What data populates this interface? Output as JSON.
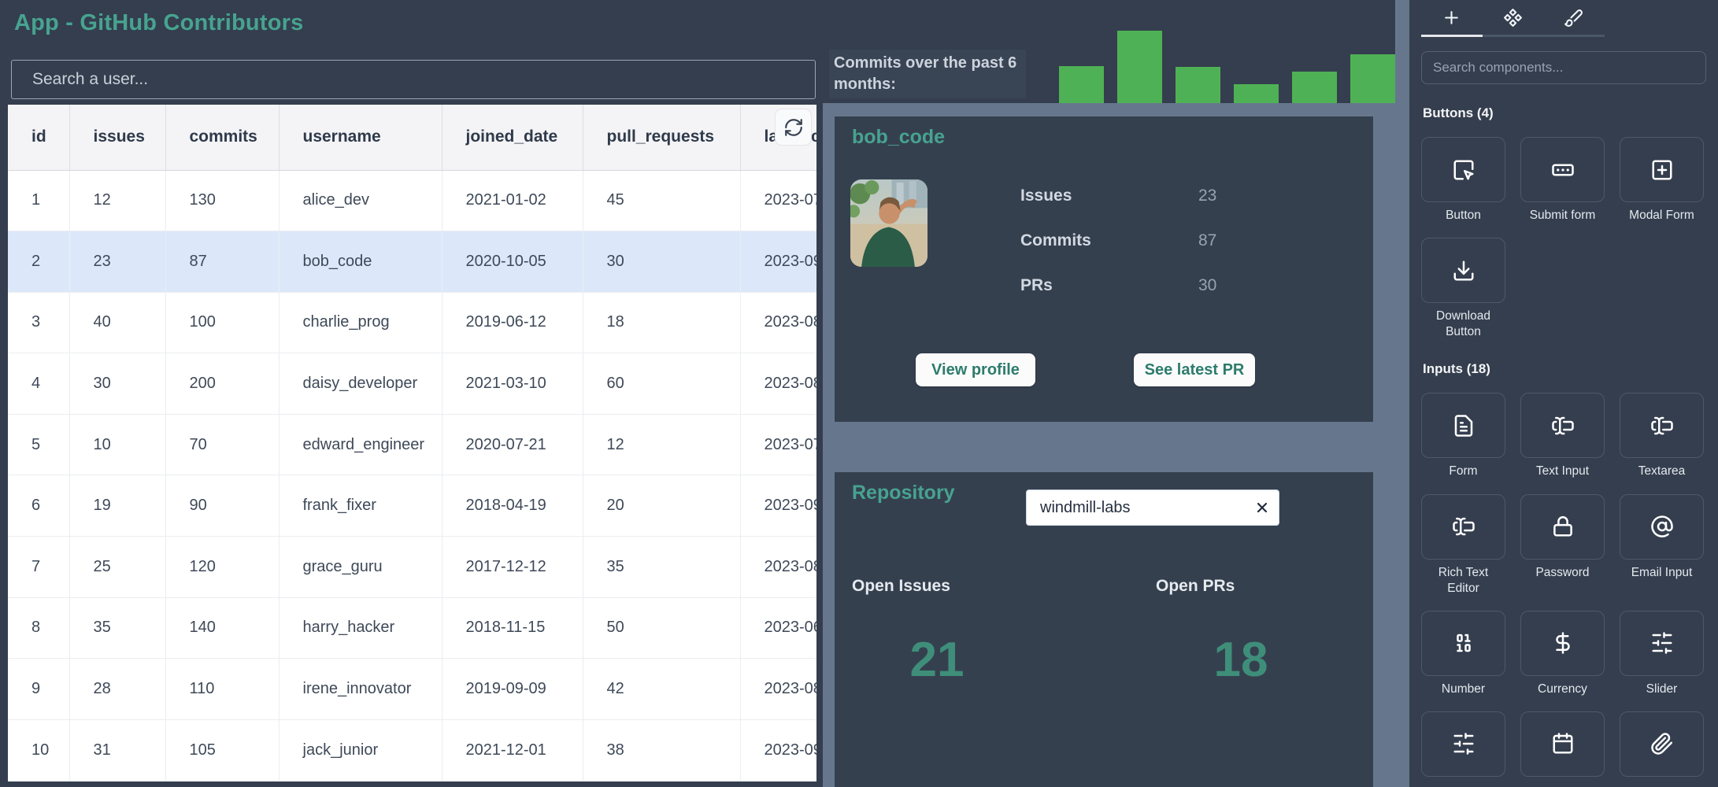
{
  "app": {
    "title": "App - GitHub Contributors"
  },
  "user_search": {
    "placeholder": "Search a user..."
  },
  "contributors_table": {
    "refresh_icon": "refresh",
    "columns": [
      "id",
      "issues",
      "commits",
      "username",
      "joined_date",
      "pull_requests",
      "last_ac"
    ],
    "selected_row": 2,
    "rows": [
      [
        "1",
        "12",
        "130",
        "alice_dev",
        "2021-01-02",
        "45",
        "2023-07"
      ],
      [
        "2",
        "23",
        "87",
        "bob_code",
        "2020-10-05",
        "30",
        "2023-09"
      ],
      [
        "3",
        "40",
        "100",
        "charlie_prog",
        "2019-06-12",
        "18",
        "2023-08"
      ],
      [
        "4",
        "30",
        "200",
        "daisy_developer",
        "2021-03-10",
        "60",
        "2023-08"
      ],
      [
        "5",
        "10",
        "70",
        "edward_engineer",
        "2020-07-21",
        "12",
        "2023-07"
      ],
      [
        "6",
        "19",
        "90",
        "frank_fixer",
        "2018-04-19",
        "20",
        "2023-09"
      ],
      [
        "7",
        "25",
        "120",
        "grace_guru",
        "2017-12-12",
        "35",
        "2023-08"
      ],
      [
        "8",
        "35",
        "140",
        "harry_hacker",
        "2018-11-15",
        "50",
        "2023-06"
      ],
      [
        "9",
        "28",
        "110",
        "irene_innovator",
        "2019-09-09",
        "42",
        "2023-08"
      ],
      [
        "10",
        "31",
        "105",
        "jack_junior",
        "2021-12-01",
        "38",
        "2023-09"
      ]
    ]
  },
  "chart_data": {
    "type": "bar",
    "title": "Commits over the past 6 months:",
    "categories": [
      "",
      "",
      "",
      "",
      "",
      ""
    ],
    "values": [
      51,
      100,
      50,
      26,
      43,
      67
    ],
    "ylim": [
      0,
      100
    ],
    "xlabel": "",
    "ylabel": "",
    "axes_hidden": true,
    "legend": "none",
    "bar_color": "#4fb155"
  },
  "user_card": {
    "title": "bob_code",
    "avatar_icon": "bob-avatar-photo",
    "stats": [
      {
        "label": "Issues",
        "value": "23"
      },
      {
        "label": "Commits",
        "value": "87"
      },
      {
        "label": "PRs",
        "value": "30"
      }
    ],
    "actions": [
      "View profile",
      "See latest PR"
    ]
  },
  "repo_card": {
    "title": "Repository",
    "input_value": "windmill-labs",
    "clear_icon": "x",
    "metrics": [
      {
        "label": "Open Issues",
        "value": "21"
      },
      {
        "label": "Open PRs",
        "value": "18"
      }
    ]
  },
  "sidebar": {
    "tabs": [
      {
        "icon": "plus"
      },
      {
        "icon": "component"
      },
      {
        "icon": "brush"
      }
    ],
    "active_tab": 0,
    "search_placeholder": "Search components...",
    "sections": [
      {
        "title": "Buttons (4)",
        "items": [
          {
            "label": "Button",
            "icon": "cursor-click"
          },
          {
            "label": "Submit form",
            "icon": "rect-ellipsis"
          },
          {
            "label": "Modal Form",
            "icon": "plus-square"
          },
          {
            "label": "Download Button",
            "icon": "download"
          }
        ]
      },
      {
        "title": "Inputs (18)",
        "items": [
          {
            "label": "Form",
            "icon": "file-text"
          },
          {
            "label": "Text Input",
            "icon": "text-cursor"
          },
          {
            "label": "Textarea",
            "icon": "text-cursor"
          },
          {
            "label": "Rich Text Editor",
            "icon": "text-cursor"
          },
          {
            "label": "Password",
            "icon": "lock"
          },
          {
            "label": "Email Input",
            "icon": "at-sign"
          },
          {
            "label": "Number",
            "icon": "binary"
          },
          {
            "label": "Currency",
            "icon": "dollar"
          },
          {
            "label": "Slider",
            "icon": "sliders"
          },
          {
            "label": "",
            "icon": "sliders"
          },
          {
            "label": "",
            "icon": "calendar"
          },
          {
            "label": "",
            "icon": "paperclip"
          }
        ]
      }
    ]
  },
  "colors": {
    "page_bg": "#343e4e",
    "mid_panel": "#66778d",
    "accent_teal": "#47a390",
    "metric_green": "#3e8e7a",
    "bar_green": "#4fb155",
    "selected_row": "#dce8fa"
  }
}
